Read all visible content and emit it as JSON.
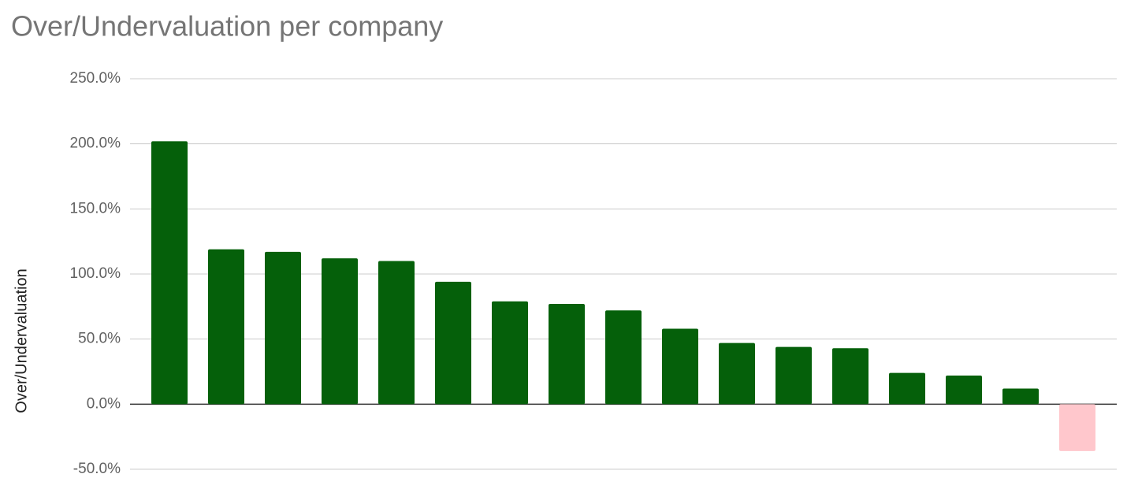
{
  "chart_data": {
    "type": "bar",
    "title": "Over/Undervaluation per company",
    "y_label": "Over/Undervaluation",
    "categories": [
      null,
      null,
      null,
      null,
      null,
      null,
      null,
      null,
      null,
      null,
      null,
      null,
      null,
      null,
      null,
      null,
      null
    ],
    "values": [
      202,
      119,
      117,
      112,
      110,
      94,
      79,
      77,
      72,
      58,
      47,
      44,
      43,
      24,
      22,
      12,
      -36
    ],
    "colors": [
      "#05600a",
      "#05600a",
      "#05600a",
      "#05600a",
      "#05600a",
      "#05600a",
      "#05600a",
      "#05600a",
      "#05600a",
      "#05600a",
      "#05600a",
      "#05600a",
      "#05600a",
      "#05600a",
      "#05600a",
      "#05600a",
      "#ffc7cc"
    ],
    "ylim": [
      -50,
      250
    ],
    "yticks": [
      {
        "value": -50,
        "label": "-50.0%"
      },
      {
        "value": 0,
        "label": "0.0%"
      },
      {
        "value": 50,
        "label": "50.0%"
      },
      {
        "value": 100,
        "label": "100.0%"
      },
      {
        "value": 150,
        "label": "150.0%"
      },
      {
        "value": 200,
        "label": "200.0%"
      },
      {
        "value": 250,
        "label": "250.0%"
      }
    ],
    "grid": true
  }
}
